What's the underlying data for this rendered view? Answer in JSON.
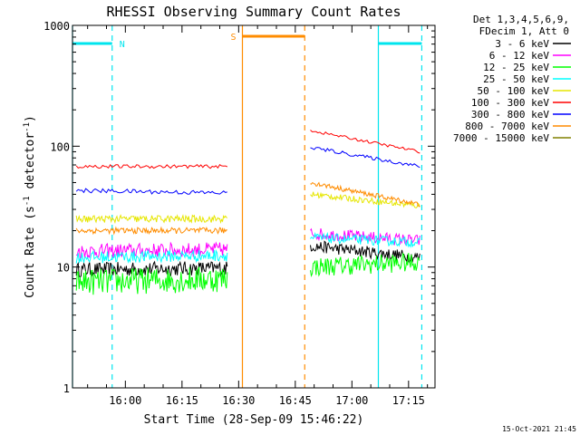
{
  "chart_data": {
    "type": "line",
    "title": "RHESSI Observing Summary Count Rates",
    "xlabel": "Start Time (28-Sep-09 15:46:22)",
    "ylabel": "Count Rate (s",
    "ylabel_sup1": "-1",
    "ylabel_mid": " detector",
    "ylabel_sup2": "-1",
    "ylabel_end": ")",
    "yscale": "log",
    "ylim": [
      1,
      1000
    ],
    "xlim_minutes": [
      0,
      96
    ],
    "x_ticks": [
      {
        "minute": 14,
        "label": "16:00"
      },
      {
        "minute": 29,
        "label": "16:15"
      },
      {
        "minute": 44,
        "label": "16:30"
      },
      {
        "minute": 59,
        "label": "16:45"
      },
      {
        "minute": 74,
        "label": "17:00"
      },
      {
        "minute": 89,
        "label": "17:15"
      }
    ],
    "y_ticks": [
      {
        "value": 1,
        "label": "1"
      },
      {
        "value": 10,
        "label": "10"
      },
      {
        "value": 100,
        "label": "100"
      },
      {
        "value": 1000,
        "label": "1000"
      }
    ],
    "legend_header": [
      "Det 1,3,4,5,6,9,",
      "FDecim 1, Att 0"
    ],
    "legend_position": "right",
    "series": [
      {
        "name": "3 - 6 keV",
        "color": "#000000",
        "segments": [
          {
            "x": [
              1,
              41
            ],
            "y": [
              9.5,
              9.8
            ],
            "noise": 0.06,
            "step": 0.25
          },
          {
            "x": [
              63,
              92
            ],
            "y": [
              15,
              12
            ],
            "noise": 0.05,
            "step": 0.25
          }
        ]
      },
      {
        "name": "6 - 12 keV",
        "color": "#ff00ff",
        "segments": [
          {
            "x": [
              1,
              41
            ],
            "y": [
              13.5,
              14
            ],
            "noise": 0.06,
            "step": 0.25
          },
          {
            "x": [
              63,
              92
            ],
            "y": [
              19,
              16.5
            ],
            "noise": 0.05,
            "step": 0.25
          }
        ]
      },
      {
        "name": "12 - 25 keV",
        "color": "#00ff00",
        "segments": [
          {
            "x": [
              1,
              41
            ],
            "y": [
              7.5,
              8
            ],
            "noise": 0.11,
            "step": 0.25
          },
          {
            "x": [
              63,
              92
            ],
            "y": [
              10,
              11
            ],
            "noise": 0.08,
            "step": 0.25
          }
        ]
      },
      {
        "name": "25 - 50 keV",
        "color": "#00ffff",
        "segments": [
          {
            "x": [
              1,
              41
            ],
            "y": [
              12,
              12.5
            ],
            "noise": 0.05,
            "step": 0.25
          },
          {
            "x": [
              63,
              92
            ],
            "y": [
              17.5,
              16
            ],
            "noise": 0.04,
            "step": 0.25
          }
        ]
      },
      {
        "name": "50 - 100 keV",
        "color": "#e6e600",
        "segments": [
          {
            "x": [
              1,
              41
            ],
            "y": [
              25,
              25
            ],
            "noise": 0.03,
            "step": 0.25
          },
          {
            "x": [
              63,
              92
            ],
            "y": [
              40,
              32
            ],
            "noise": 0.025,
            "step": 0.25
          }
        ]
      },
      {
        "name": "100 - 300 keV",
        "color": "#ff0000",
        "segments": [
          {
            "x": [
              1,
              41
            ],
            "y": [
              68,
              68
            ],
            "noise": 0.015,
            "step": 0.5
          },
          {
            "x": [
              63,
              92
            ],
            "y": [
              135,
              90
            ],
            "noise": 0.012,
            "step": 0.5
          }
        ]
      },
      {
        "name": "300 - 800 keV",
        "color": "#0000ff",
        "segments": [
          {
            "x": [
              1,
              41
            ],
            "y": [
              43,
              41
            ],
            "noise": 0.018,
            "step": 0.5
          },
          {
            "x": [
              63,
              92
            ],
            "y": [
              98,
              68
            ],
            "noise": 0.015,
            "step": 0.5
          }
        ]
      },
      {
        "name": "800 - 7000 keV",
        "color": "#ff8c00",
        "segments": [
          {
            "x": [
              1,
              41
            ],
            "y": [
              20,
              20
            ],
            "noise": 0.025,
            "step": 0.25
          },
          {
            "x": [
              63,
              92
            ],
            "y": [
              50,
              33
            ],
            "noise": 0.02,
            "step": 0.25
          }
        ]
      },
      {
        "name": "7000 - 15000 keV",
        "color": "#808000",
        "segments": []
      }
    ],
    "annotations": {
      "night_label": "N",
      "saa_label": "S",
      "night_color": "#00e5ee",
      "saa_color": "#ff8c00",
      "night_bars": [
        {
          "start": 0,
          "end": 10.5
        },
        {
          "start": 81,
          "end": 92.5
        }
      ],
      "night_lines_solid": [
        0,
        81
      ],
      "night_lines_dashed": [
        10.5,
        92.5
      ],
      "saa_bar": {
        "start": 45,
        "end": 61.5
      },
      "saa_line_solid": 45,
      "saa_line_dashed": 61.5
    }
  },
  "footer": {
    "timestamp": "15-Oct-2021 21:45"
  }
}
